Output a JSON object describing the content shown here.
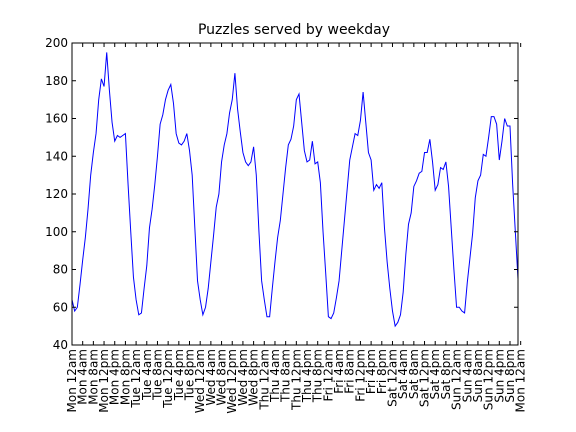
{
  "chart_data": {
    "type": "line",
    "title": "Puzzles served by weekday",
    "xlabel": "",
    "ylabel": "",
    "ylim": [
      40,
      200
    ],
    "yticks": [
      40,
      60,
      80,
      100,
      120,
      140,
      160,
      180,
      200
    ],
    "grid": false,
    "legend": "none",
    "line_color": "#0000ff",
    "xtick_labels": [
      "Mon 12am",
      "Mon 4am",
      "Mon 8am",
      "Mon 12pm",
      "Mon 4pm",
      "Mon 8pm",
      "Tue 12am",
      "Tue 4am",
      "Tue 8am",
      "Tue 12pm",
      "Tue 4pm",
      "Tue 8pm",
      "Wed 12am",
      "Wed 4am",
      "Wed 8am",
      "Wed 12pm",
      "Wed 4pm",
      "Wed 8pm",
      "Thu 12am",
      "Thu 4am",
      "Thu 8am",
      "Thu 12pm",
      "Thu 4pm",
      "Thu 8pm",
      "Fri 12am",
      "Fri 4am",
      "Fri 8am",
      "Fri 12pm",
      "Fri 4pm",
      "Fri 8pm",
      "Sat 12am",
      "Sat 4am",
      "Sat 8am",
      "Sat 12pm",
      "Sat 4pm",
      "Sat 8pm",
      "Sun 12am",
      "Sun 4am",
      "Sun 8am",
      "Sun 12pm",
      "Sun 4pm",
      "Sun 8pm",
      "Mon 12am"
    ],
    "series": [
      {
        "values": [
          64,
          58,
          60,
          72,
          85,
          97,
          112,
          130,
          142,
          152,
          170,
          181,
          177,
          195,
          175,
          158,
          148,
          151,
          150,
          151,
          152,
          125,
          100,
          76,
          64,
          56,
          57,
          70,
          82,
          102,
          112,
          125,
          140,
          157,
          162,
          170,
          175,
          178,
          168,
          152,
          147,
          146,
          148,
          152,
          143,
          130,
          102,
          74,
          64,
          56,
          60,
          70,
          84,
          98,
          113,
          120,
          137,
          146,
          152,
          163,
          170,
          184,
          165,
          153,
          142,
          137,
          135,
          137,
          145,
          130,
          100,
          74,
          64,
          55,
          55,
          70,
          84,
          97,
          106,
          120,
          134,
          146,
          149,
          156,
          170,
          173,
          158,
          143,
          137,
          138,
          148,
          136,
          137,
          126,
          100,
          78,
          55,
          54,
          57,
          65,
          74,
          90,
          106,
          122,
          138,
          145,
          152,
          151,
          159,
          174,
          158,
          142,
          138,
          122,
          125,
          123,
          126,
          102,
          84,
          70,
          58,
          50,
          52,
          56,
          68,
          88,
          104,
          110,
          124,
          127,
          131,
          132,
          142,
          142,
          149,
          137,
          122,
          125,
          134,
          133,
          137,
          124,
          102,
          80,
          60,
          60,
          58,
          57,
          73,
          86,
          99,
          118,
          127,
          130,
          141,
          140,
          150,
          161,
          161,
          157,
          138,
          148,
          160,
          156,
          156,
          125,
          100,
          75
        ]
      }
    ]
  }
}
